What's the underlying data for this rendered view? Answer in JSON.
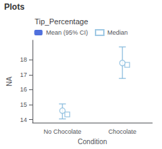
{
  "chart_data": {
    "type": "errorbar",
    "title": "Tip_Percentage",
    "annotations": [
      "Plots"
    ],
    "xlabel": "Condition",
    "ylabel": "NA",
    "categories": [
      "No Chocolate",
      "Chocolate"
    ],
    "series": [
      {
        "name": "Mean (95% CI)",
        "type": "scatter",
        "marker": "circle",
        "color": "#88bbdd",
        "values": [
          14.6,
          17.78
        ],
        "ci_lower": [
          14.05,
          16.75
        ],
        "ci_upper": [
          15.05,
          18.85
        ]
      },
      {
        "name": "Median",
        "type": "scatter",
        "marker": "square",
        "color": "#88bbdd",
        "values": [
          14.35,
          17.65
        ]
      }
    ],
    "ylim": [
      13.8,
      19.3
    ],
    "yticks": [
      14,
      15,
      16,
      17,
      18
    ],
    "grid": false,
    "legend": "top"
  }
}
